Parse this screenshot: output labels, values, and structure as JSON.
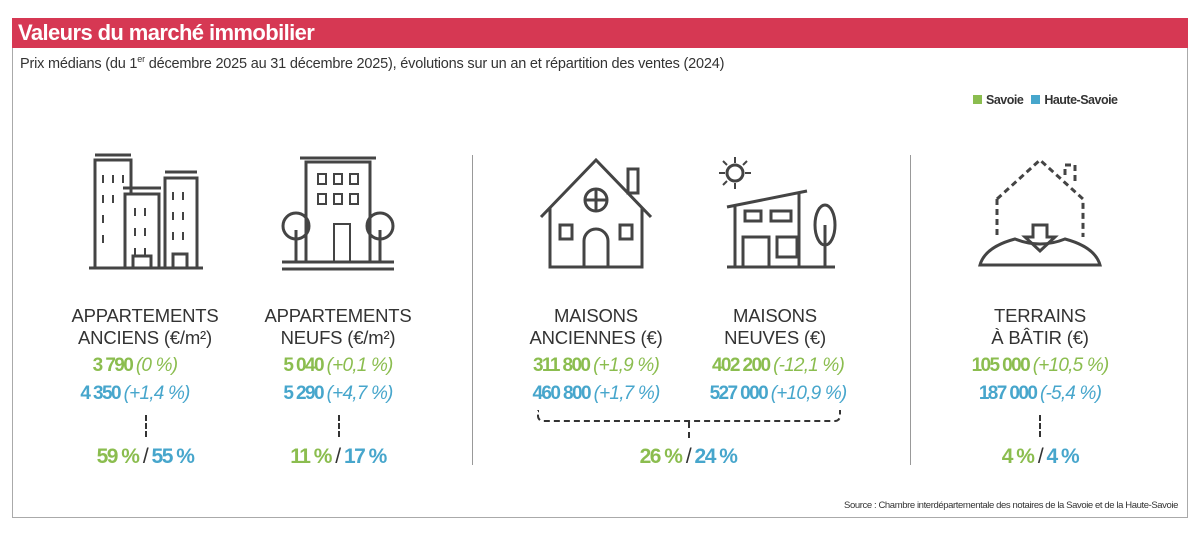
{
  "title": "Valeurs du marché immobilier",
  "subtitle": {
    "before": "Prix médians (du 1",
    "sup": "er",
    "after": " décembre 2025 au 31 décembre 2025), évolutions sur un an et répartition des ventes (2024)"
  },
  "legend": [
    {
      "label": "Savoie",
      "color": "#8bbd4f"
    },
    {
      "label": "Haute-Savoie",
      "color": "#47a6cc"
    }
  ],
  "categories": [
    {
      "line1": "APPARTEMENTS",
      "line2": "ANCIENS (€/m²)",
      "savoie_value": "3 790",
      "savoie_change": "(0 %)",
      "hs_value": "4 350",
      "hs_change": "(+1,4 %)"
    },
    {
      "line1": "APPARTEMENTS",
      "line2": "NEUFS (€/m²)",
      "savoie_value": "5 040",
      "savoie_change": "(+0,1 %)",
      "hs_value": "5 290",
      "hs_change": "(+4,7 %)"
    },
    {
      "line1": "MAISONS",
      "line2": "ANCIENNES (€)",
      "savoie_value": "311 800",
      "savoie_change": "(+1,9 %)",
      "hs_value": "460 800",
      "hs_change": "(+1,7 %)"
    },
    {
      "line1": "MAISONS",
      "line2": "NEUVES (€)",
      "savoie_value": "402 200",
      "savoie_change": "(-12,1 %)",
      "hs_value": "527 000",
      "hs_change": "(+10,9 %)"
    },
    {
      "line1": "TERRAINS",
      "line2": "À BÂTIR (€)",
      "savoie_value": "105 000",
      "savoie_change": "(+10,5 %)",
      "hs_value": "187 000",
      "hs_change": "(-5,4 %)"
    }
  ],
  "shares": [
    {
      "savoie": "59 %",
      "hs": "55 %"
    },
    {
      "savoie": "11 %",
      "hs": "17 %"
    },
    {
      "savoie": "26 %",
      "hs": "24 %"
    },
    {
      "savoie": "4 %",
      "hs": "4 %"
    }
  ],
  "separator": "/",
  "source": "Source : Chambre interdépartementale des notaires de la Savoie et de la Haute-Savoie"
}
